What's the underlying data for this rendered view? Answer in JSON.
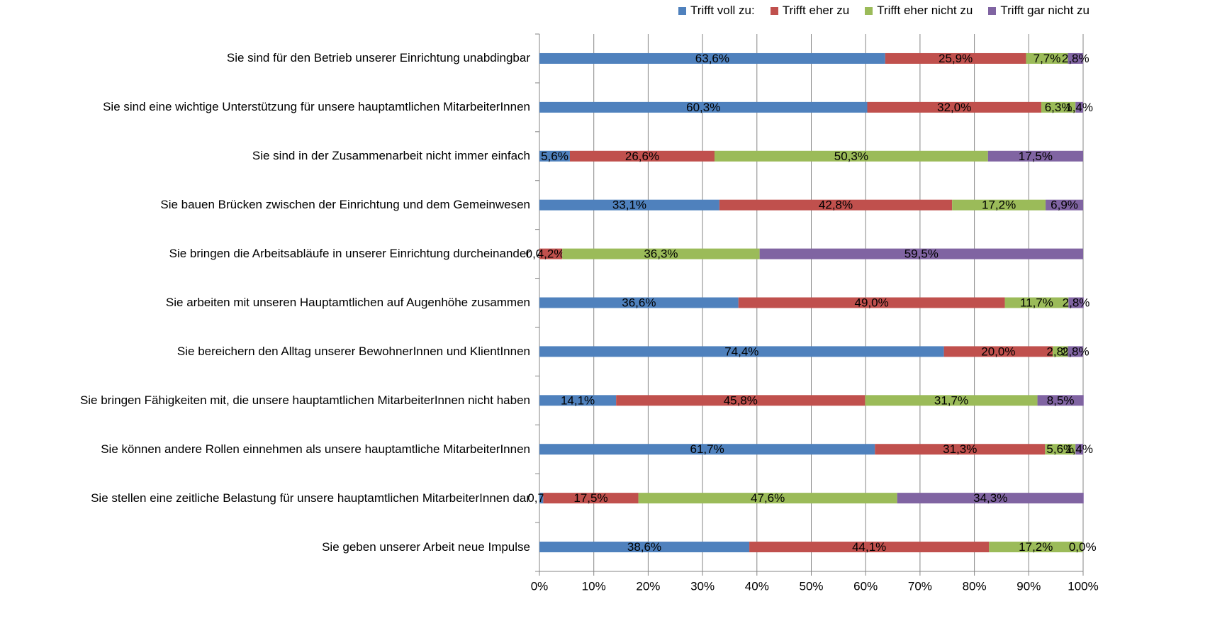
{
  "chart_data": {
    "type": "stacked_barh",
    "categories": [
      "Sie sind für den Betrieb unserer Einrichtung unabdingbar",
      "Sie sind eine wichtige Unterstützung für unsere hauptamtlichen MitarbeiterInnen",
      "Sie sind in der Zusammenarbeit nicht immer einfach",
      "Sie bauen Brücken zwischen der Einrichtung und dem Gemeinwesen",
      "Sie bringen die Arbeitsabläufe in unserer Einrichtung durcheinander",
      "Sie arbeiten mit unseren Hauptamtlichen auf Augenhöhe zusammen",
      "Sie bereichern den Alltag unserer BewohnerInnen und KlientInnen",
      "Sie bringen Fähigkeiten mit, die unsere hauptamtlichen MitarbeiterInnen nicht haben",
      "Sie können andere Rollen einnehmen als unsere hauptamtliche MitarbeiterInnen",
      "Sie stellen eine zeitliche Belastung für unsere hauptamtlichen MitarbeiterInnen dar",
      "Sie geben unserer Arbeit neue Impulse"
    ],
    "series": [
      {
        "name": "Trifft voll zu:",
        "color": "#4f81bd",
        "values": [
          63.6,
          60.3,
          5.6,
          33.1,
          0.0,
          36.6,
          74.4,
          14.1,
          61.7,
          0.7,
          38.6
        ],
        "value_labels": [
          "63,6%",
          "60,3%",
          "5,6%",
          "33,1%",
          "0,0%",
          "36,6%",
          "74,4%",
          "14,1%",
          "61,7%",
          "0,7%",
          "38,6%"
        ]
      },
      {
        "name": "Trifft eher zu",
        "color": "#c0504d",
        "values": [
          25.9,
          32.0,
          26.6,
          42.8,
          4.2,
          49.0,
          20.0,
          45.8,
          31.3,
          17.5,
          44.1
        ],
        "value_labels": [
          "25,9%",
          "32,0%",
          "26,6%",
          "42,8%",
          "4,2%",
          "49,0%",
          "20,0%",
          "45,8%",
          "31,3%",
          "17,5%",
          "44,1%"
        ]
      },
      {
        "name": "Trifft eher nicht zu",
        "color": "#9bbb59",
        "values": [
          7.7,
          6.3,
          50.3,
          17.2,
          36.3,
          11.7,
          2.8,
          31.7,
          5.6,
          47.6,
          17.2
        ],
        "value_labels": [
          "7,7%",
          "6,3%",
          "50,3%",
          "17,2%",
          "36,3%",
          "11,7%",
          "2,8%",
          "31,7%",
          "5,6%",
          "47,6%",
          "17,2%"
        ]
      },
      {
        "name": "Trifft gar nicht zu",
        "color": "#8064a2",
        "values": [
          2.8,
          1.4,
          17.5,
          6.9,
          59.5,
          2.8,
          2.8,
          8.5,
          1.4,
          34.3,
          0.0
        ],
        "value_labels": [
          "2,8%",
          "1,4%",
          "17,5%",
          "6,9%",
          "59,5%",
          "2,8%",
          "2,8%",
          "8,5%",
          "1,4%",
          "34,3%",
          "0,0%"
        ]
      }
    ],
    "xlim": [
      0,
      100
    ],
    "xticks": [
      {
        "value": 0,
        "label": "0%"
      },
      {
        "value": 10,
        "label": "10%"
      },
      {
        "value": 20,
        "label": "20%"
      },
      {
        "value": 30,
        "label": "30%"
      },
      {
        "value": 40,
        "label": "40%"
      },
      {
        "value": 50,
        "label": "50%"
      },
      {
        "value": 60,
        "label": "60%"
      },
      {
        "value": 70,
        "label": "70%"
      },
      {
        "value": 80,
        "label": "80%"
      },
      {
        "value": 90,
        "label": "90%"
      },
      {
        "value": 100,
        "label": "100%"
      }
    ],
    "grid": true,
    "legend": "top"
  }
}
